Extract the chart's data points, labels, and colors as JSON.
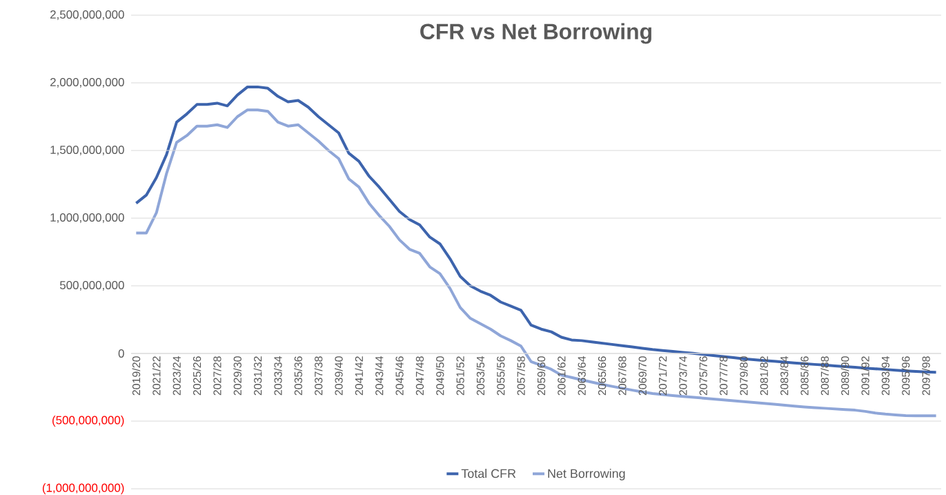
{
  "chart_data": {
    "type": "line",
    "title": "CFR vs Net Borrowing",
    "categories": [
      "2019/20",
      null,
      "2021/22",
      null,
      "2023/24",
      null,
      "2025/26",
      null,
      "2027/28",
      null,
      "2029/30",
      null,
      "2031/32",
      null,
      "2033/34",
      null,
      "2035/36",
      null,
      "2037/38",
      null,
      "2039/40",
      null,
      "2041/42",
      null,
      "2043/44",
      null,
      "2045/46",
      null,
      "2047/48",
      null,
      "2049/50",
      null,
      "2051/52",
      null,
      "2053/54",
      null,
      "2055/56",
      null,
      "2057/58",
      null,
      "2059/60",
      null,
      "2061/62",
      null,
      "2063/64",
      null,
      "2065/66",
      null,
      "2067/68",
      null,
      "2069/70",
      null,
      "2071/72",
      null,
      "2073/74",
      null,
      "2075/76",
      null,
      "2077/78",
      null,
      "2079/80",
      null,
      "2081/82",
      null,
      "2083/84",
      null,
      "2085/86",
      null,
      "2087/88",
      null,
      "2089/90",
      null,
      "2091/92",
      null,
      "2093/94",
      null,
      "2095/96",
      null,
      "2097/98",
      null
    ],
    "series": [
      {
        "name": "Total CFR",
        "color": "#3d64ad",
        "values": [
          1110000000,
          1170000000,
          1300000000,
          1470000000,
          1710000000,
          1770000000,
          1840000000,
          1840000000,
          1850000000,
          1830000000,
          1910000000,
          1970000000,
          1970000000,
          1960000000,
          1900000000,
          1860000000,
          1870000000,
          1820000000,
          1750000000,
          1690000000,
          1630000000,
          1480000000,
          1420000000,
          1310000000,
          1230000000,
          1140000000,
          1050000000,
          990000000,
          950000000,
          860000000,
          810000000,
          700000000,
          570000000,
          500000000,
          460000000,
          430000000,
          380000000,
          350000000,
          320000000,
          210000000,
          180000000,
          160000000,
          120000000,
          100000000,
          95000000,
          85000000,
          76000000,
          67000000,
          57000000,
          48000000,
          38000000,
          29000000,
          22000000,
          15000000,
          8000000,
          1000000,
          -7000000,
          -15000000,
          -23000000,
          -31000000,
          -39000000,
          -46000000,
          -52000000,
          -58000000,
          -64000000,
          -70000000,
          -75000000,
          -81000000,
          -86000000,
          -92000000,
          -97000000,
          -102000000,
          -108000000,
          -113000000,
          -118000000,
          -124000000,
          -129000000,
          -133000000,
          -137000000,
          -139000000
        ]
      },
      {
        "name": "Net Borrowing",
        "color": "#8fa6d8",
        "values": [
          890000000,
          890000000,
          1040000000,
          1330000000,
          1560000000,
          1610000000,
          1680000000,
          1680000000,
          1690000000,
          1670000000,
          1750000000,
          1800000000,
          1800000000,
          1790000000,
          1710000000,
          1680000000,
          1690000000,
          1630000000,
          1570000000,
          1500000000,
          1440000000,
          1290000000,
          1230000000,
          1110000000,
          1020000000,
          940000000,
          840000000,
          770000000,
          740000000,
          640000000,
          590000000,
          480000000,
          340000000,
          260000000,
          220000000,
          180000000,
          130000000,
          95000000,
          55000000,
          -60000000,
          -88000000,
          -117000000,
          -160000000,
          -177000000,
          -195000000,
          -212000000,
          -228000000,
          -243000000,
          -257000000,
          -271000000,
          -284000000,
          -296000000,
          -304000000,
          -311000000,
          -318000000,
          -324000000,
          -330000000,
          -337000000,
          -343000000,
          -350000000,
          -356000000,
          -362000000,
          -369000000,
          -375000000,
          -382000000,
          -389000000,
          -395000000,
          -400000000,
          -405000000,
          -410000000,
          -415000000,
          -419000000,
          -428000000,
          -440000000,
          -448000000,
          -454000000,
          -459000000,
          -460000000,
          -460000000,
          -460000000
        ]
      }
    ],
    "ylim": [
      -1000000000,
      2500000000
    ],
    "yticks": [
      {
        "value": -1000000000,
        "label": "(1,000,000,000)"
      },
      {
        "value": -500000000,
        "label": "(500,000,000)"
      },
      {
        "value": 0,
        "label": "0"
      },
      {
        "value": 500000000,
        "label": "500,000,000"
      },
      {
        "value": 1000000000,
        "label": "1,000,000,000"
      },
      {
        "value": 1500000000,
        "label": "1,500,000,000"
      },
      {
        "value": 2000000000,
        "label": "2,000,000,000"
      },
      {
        "value": 2500000000,
        "label": "2,500,000,000"
      }
    ],
    "grid": "y",
    "legend": "bottom",
    "marker": "none",
    "line_style": "solid"
  }
}
